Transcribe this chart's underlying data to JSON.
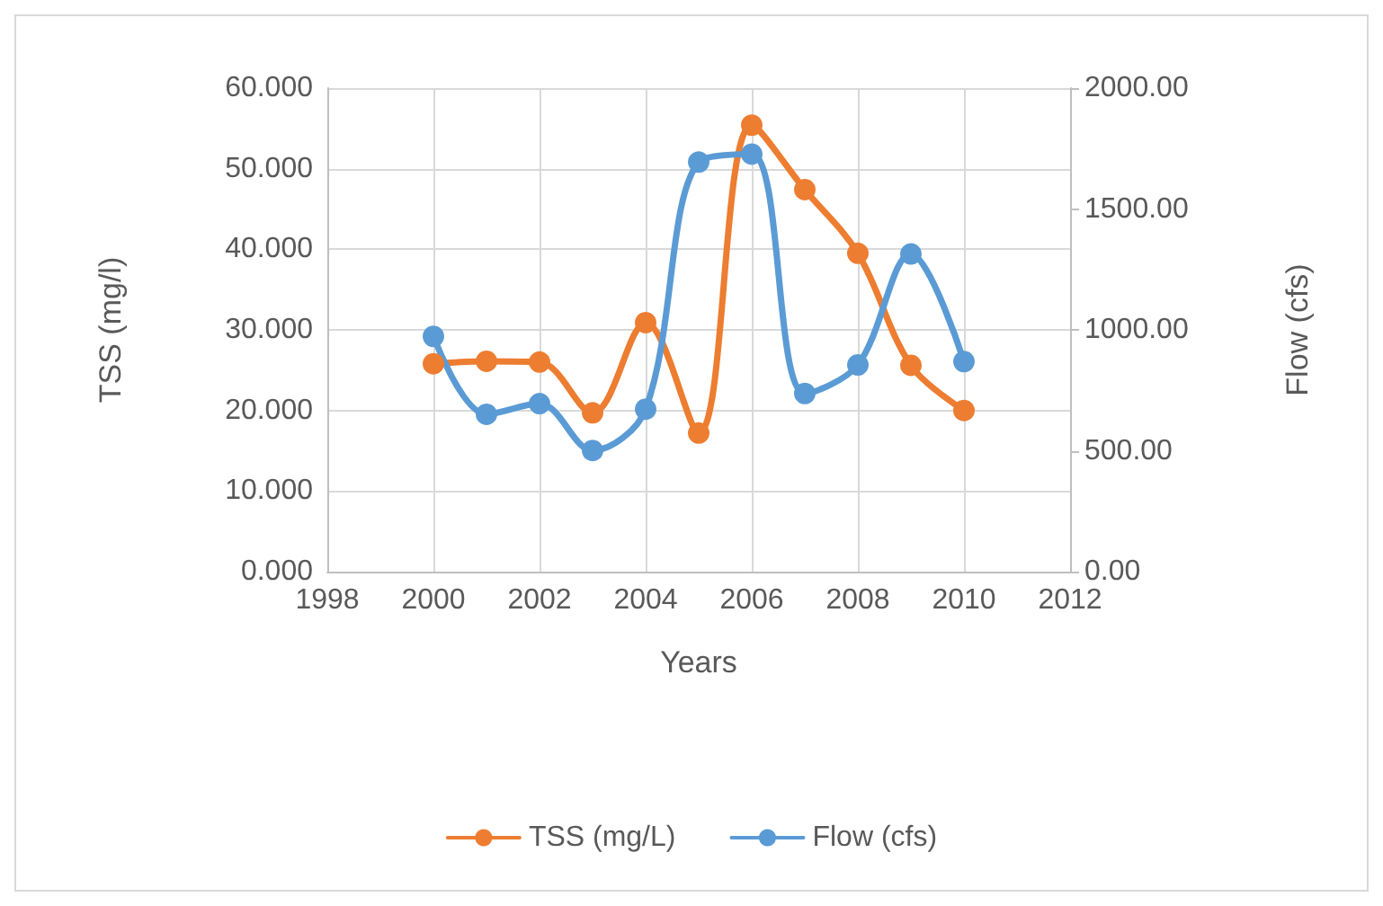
{
  "chart_data": {
    "type": "line",
    "xlabel": "Years",
    "ylabel": "TSS (mg/l)",
    "y2label": "Flow (cfs)",
    "x": [
      2000,
      2001,
      2002,
      2003,
      2004,
      2005,
      2006,
      2007,
      2008,
      2009,
      2010
    ],
    "series": [
      {
        "name": "TSS (mg/L)",
        "color": "#ed7d31",
        "values": [
          25.8,
          26.1,
          26.0,
          19.7,
          30.9,
          17.2,
          55.4,
          47.4,
          39.5,
          25.6,
          20.0
        ]
      },
      {
        "name": "Flow (cfs)",
        "color": "#5b9bd5",
        "axis": "y2",
        "values": [
          973,
          651,
          695,
          501,
          672,
          1694,
          1727,
          737,
          855,
          1314,
          869
        ]
      }
    ],
    "xlim": [
      1998,
      2012
    ],
    "xticks": [
      1998,
      2000,
      2002,
      2004,
      2006,
      2008,
      2010,
      2012
    ],
    "ylim": [
      0,
      60
    ],
    "yticks": [
      {
        "value": 0,
        "label": "0.000"
      },
      {
        "value": 10,
        "label": "10.000"
      },
      {
        "value": 20,
        "label": "20.000"
      },
      {
        "value": 30,
        "label": "30.000"
      },
      {
        "value": 40,
        "label": "40.000"
      },
      {
        "value": 50,
        "label": "50.000"
      },
      {
        "value": 60,
        "label": "60.000"
      }
    ],
    "y2lim": [
      0,
      2000
    ],
    "y2ticks": [
      {
        "value": 0,
        "label": "0.00"
      },
      {
        "value": 500,
        "label": "500.00"
      },
      {
        "value": 1000,
        "label": "1000.00"
      },
      {
        "value": 1500,
        "label": "1500.00"
      },
      {
        "value": 2000,
        "label": "2000.00"
      }
    ],
    "grid": true,
    "legend": "bottom",
    "marker": "circle",
    "line_style": "solid"
  }
}
